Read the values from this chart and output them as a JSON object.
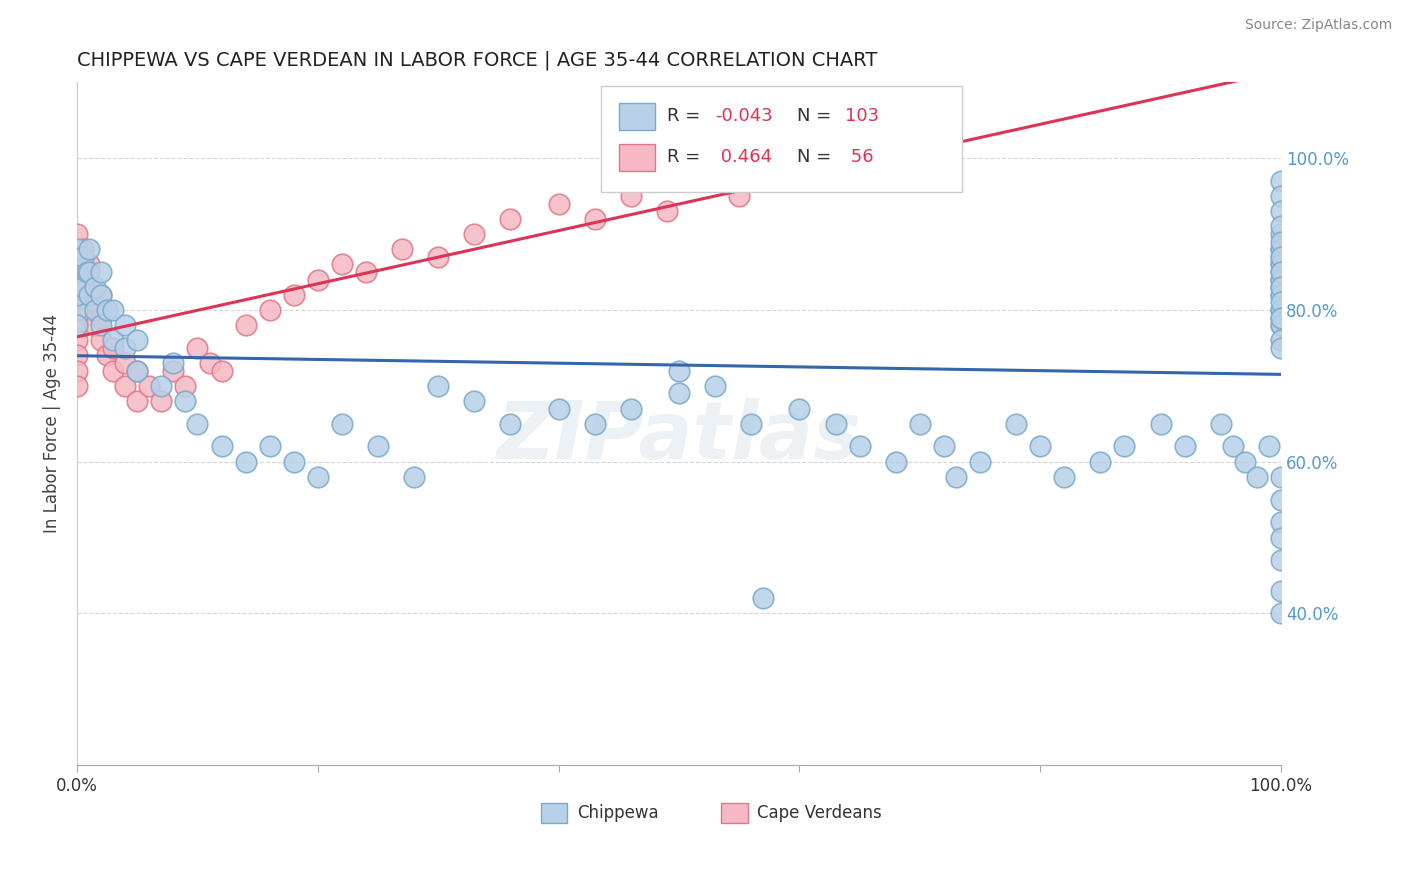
{
  "title": "CHIPPEWA VS CAPE VERDEAN IN LABOR FORCE | AGE 35-44 CORRELATION CHART",
  "source": "Source: ZipAtlas.com",
  "ylabel": "In Labor Force | Age 35-44",
  "xlim": [
    0.0,
    1.0
  ],
  "ylim": [
    0.2,
    1.1
  ],
  "yticks": [
    0.4,
    0.6,
    0.8,
    1.0
  ],
  "ytick_labels": [
    "40.0%",
    "60.0%",
    "80.0%",
    "100.0%"
  ],
  "watermark": "ZIPatlas",
  "chippewa_color": "#b8d0e8",
  "capeverdean_color": "#f5b8c4",
  "chippewa_edge": "#7aaac8",
  "capeverdean_edge": "#e07888",
  "trend_blue": "#3366aa",
  "trend_pink": "#dd3355",
  "chippewa_x": [
    0.0,
    0.0,
    0.0,
    0.0,
    0.0,
    0.0,
    0.005,
    0.005,
    0.008,
    0.01,
    0.01,
    0.01,
    0.015,
    0.015,
    0.02,
    0.02,
    0.02,
    0.025,
    0.03,
    0.03,
    0.04,
    0.04,
    0.05,
    0.05,
    0.07,
    0.08,
    0.09,
    0.1,
    0.12,
    0.14,
    0.16,
    0.18,
    0.2,
    0.22,
    0.25,
    0.28,
    0.3,
    0.33,
    0.36,
    0.4,
    0.43,
    0.46,
    0.5,
    0.5,
    0.53,
    0.56,
    0.57,
    0.6,
    0.63,
    0.65,
    0.68,
    0.7,
    0.72,
    0.73,
    0.75,
    0.78,
    0.8,
    0.82,
    0.85,
    0.87,
    0.9,
    0.92,
    0.95,
    0.96,
    0.97,
    0.98,
    0.99,
    1.0,
    1.0,
    1.0,
    1.0,
    1.0,
    1.0,
    1.0,
    1.0,
    1.0,
    1.0,
    1.0,
    1.0,
    1.0,
    1.0,
    1.0,
    1.0,
    1.0,
    1.0,
    1.0,
    1.0,
    1.0,
    1.0,
    1.0,
    1.0,
    1.0,
    1.0,
    1.0,
    1.0,
    1.0,
    1.0,
    1.0,
    1.0,
    1.0,
    1.0,
    1.0,
    1.0
  ],
  "chippewa_y": [
    0.8,
    0.82,
    0.84,
    0.86,
    0.88,
    0.78,
    0.83,
    0.87,
    0.85,
    0.82,
    0.85,
    0.88,
    0.8,
    0.83,
    0.78,
    0.82,
    0.85,
    0.8,
    0.76,
    0.8,
    0.75,
    0.78,
    0.72,
    0.76,
    0.7,
    0.73,
    0.68,
    0.65,
    0.62,
    0.6,
    0.62,
    0.6,
    0.58,
    0.65,
    0.62,
    0.58,
    0.7,
    0.68,
    0.65,
    0.67,
    0.65,
    0.67,
    0.69,
    0.72,
    0.7,
    0.65,
    0.42,
    0.67,
    0.65,
    0.62,
    0.6,
    0.65,
    0.62,
    0.58,
    0.6,
    0.65,
    0.62,
    0.58,
    0.6,
    0.62,
    0.65,
    0.62,
    0.65,
    0.62,
    0.6,
    0.58,
    0.62,
    0.83,
    0.85,
    0.87,
    0.88,
    0.86,
    0.84,
    0.82,
    0.8,
    0.78,
    0.9,
    0.88,
    0.86,
    0.84,
    0.82,
    0.8,
    0.79,
    0.78,
    0.76,
    0.75,
    0.97,
    0.95,
    0.93,
    0.91,
    0.89,
    0.87,
    0.85,
    0.83,
    0.81,
    0.79,
    0.58,
    0.55,
    0.52,
    0.5,
    0.47,
    0.43,
    0.4
  ],
  "capeverdean_x": [
    0.0,
    0.0,
    0.0,
    0.0,
    0.0,
    0.0,
    0.0,
    0.0,
    0.0,
    0.0,
    0.005,
    0.005,
    0.008,
    0.01,
    0.01,
    0.01,
    0.015,
    0.015,
    0.02,
    0.02,
    0.02,
    0.025,
    0.03,
    0.03,
    0.04,
    0.04,
    0.05,
    0.05,
    0.06,
    0.07,
    0.08,
    0.09,
    0.1,
    0.11,
    0.12,
    0.14,
    0.16,
    0.18,
    0.2,
    0.22,
    0.24,
    0.27,
    0.3,
    0.33,
    0.36,
    0.4,
    0.43,
    0.46,
    0.49,
    0.52,
    0.55,
    0.57,
    0.58,
    0.6,
    0.62,
    0.65
  ],
  "capeverdean_y": [
    0.9,
    0.87,
    0.85,
    0.83,
    0.8,
    0.78,
    0.76,
    0.74,
    0.72,
    0.7,
    0.88,
    0.85,
    0.82,
    0.8,
    0.83,
    0.86,
    0.78,
    0.81,
    0.76,
    0.79,
    0.82,
    0.74,
    0.72,
    0.75,
    0.7,
    0.73,
    0.68,
    0.72,
    0.7,
    0.68,
    0.72,
    0.7,
    0.75,
    0.73,
    0.72,
    0.78,
    0.8,
    0.82,
    0.84,
    0.86,
    0.85,
    0.88,
    0.87,
    0.9,
    0.92,
    0.94,
    0.92,
    0.95,
    0.93,
    0.97,
    0.95,
    0.98,
    0.97,
    1.0,
    0.98,
    0.97
  ]
}
